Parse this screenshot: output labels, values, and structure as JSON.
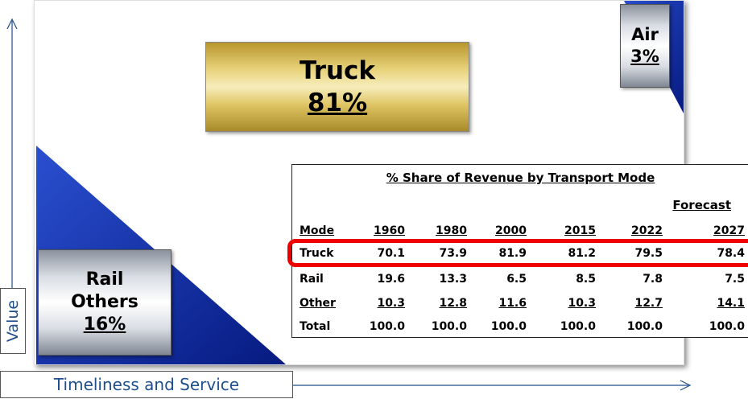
{
  "axes": {
    "y_label": "Value",
    "x_label": "Timeliness and Service"
  },
  "boxes": {
    "truck": {
      "name": "Truck",
      "share": "81%"
    },
    "air": {
      "name": "Air",
      "share": "3%"
    },
    "rail": {
      "lines": [
        "Rail",
        "Others"
      ],
      "share": "16%"
    }
  },
  "table": {
    "title": "% Share of Revenue by Transport Mode",
    "forecast": "Forecast",
    "header": [
      "Mode",
      "1960",
      "1980",
      "2000",
      "2015",
      "2022",
      "2027"
    ],
    "rows": [
      [
        "Truck",
        "70.1",
        "73.9",
        "81.9",
        "81.2",
        "79.5",
        "78.4"
      ],
      [
        "Rail",
        "19.6",
        "13.3",
        "6.5",
        "8.5",
        "7.8",
        "7.5"
      ],
      [
        "Other",
        "10.3",
        "12.8",
        "11.6",
        "10.3",
        "12.7",
        "14.1"
      ],
      [
        "Total",
        "100.0",
        "100.0",
        "100.0",
        "100.0",
        "100.0",
        "100.0"
      ]
    ]
  }
}
